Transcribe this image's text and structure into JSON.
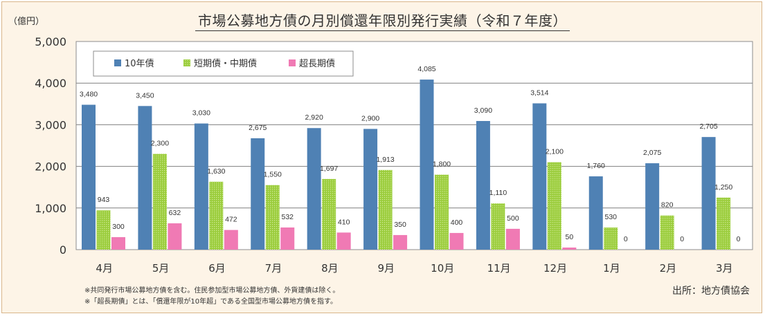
{
  "title": "市場公募地方債の月別償還年限別発行実績（令和７年度）",
  "unit_label": "（億円）",
  "notes": [
    "※共同発行市場公募地方債を含む。住民参加型市場公募地方債、外貨建債は除く。",
    "※「超長期債」とは、「償還年限が10年超」である全国型市場公募地方債を指す。"
  ],
  "source": "出所：地方債協会",
  "colors": {
    "series_10y": "#4f81b4",
    "series_short_mid": "#9bcd3c",
    "series_super_long": "#f07ab4",
    "background": "#fdf4e7",
    "frame": "#d9b58a"
  },
  "chart_data": {
    "type": "bar",
    "title": "市場公募地方債の月別償還年限別発行実績（令和７年度）",
    "ylabel": "（億円）",
    "xlabel": "",
    "ylim": [
      0,
      5000
    ],
    "yticks": [
      0,
      1000,
      2000,
      3000,
      4000,
      5000
    ],
    "ytick_labels": [
      "0",
      "1,000",
      "2,000",
      "3,000",
      "4,000",
      "5,000"
    ],
    "grid": true,
    "legend_position": "top-left",
    "categories": [
      "4月",
      "5月",
      "6月",
      "7月",
      "8月",
      "9月",
      "10月",
      "11月",
      "12月",
      "1月",
      "2月",
      "3月"
    ],
    "series": [
      {
        "name": "10年債",
        "values": [
          3480,
          3450,
          3030,
          2675,
          2920,
          2900,
          4085,
          3090,
          3514,
          1760,
          2075,
          2705
        ],
        "labels": [
          "3,480",
          "3,450",
          "3,030",
          "2,675",
          "2,920",
          "2,900",
          "4,085",
          "3,090",
          "3,514",
          "1,760",
          "2,075",
          "2,705"
        ]
      },
      {
        "name": "短期債・中期債",
        "values": [
          943,
          2300,
          1630,
          1550,
          1697,
          1913,
          1800,
          1110,
          2100,
          530,
          820,
          1250
        ],
        "labels": [
          "943",
          "2,300",
          "1,630",
          "1,550",
          "1,697",
          "1,913",
          "1,800",
          "1,110",
          "2,100",
          "530",
          "820",
          "1,250"
        ]
      },
      {
        "name": "超長期債",
        "values": [
          300,
          632,
          472,
          532,
          410,
          350,
          400,
          500,
          50,
          0,
          0,
          0
        ],
        "labels": [
          "300",
          "632",
          "472",
          "532",
          "410",
          "350",
          "400",
          "500",
          "50",
          "0",
          "0",
          "0"
        ]
      }
    ]
  }
}
